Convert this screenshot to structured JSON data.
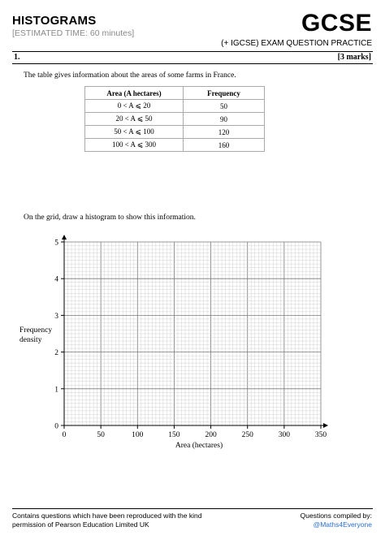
{
  "header": {
    "title": "HISTOGRAMS",
    "estimated_time": "[ESTIMATED TIME: 60 minutes]",
    "brand": "GCSE",
    "subtitle": "(+ IGCSE) EXAM QUESTION PRACTICE"
  },
  "question": {
    "number": "1.",
    "marks": "[3 marks]",
    "intro": "The table gives information about the areas of some farms in France.",
    "instruction": "On the grid, draw a histogram to show this information."
  },
  "table": {
    "headers": [
      "Area (A hectares)",
      "Frequency"
    ],
    "rows": [
      {
        "area": "0 < A ⩽ 20",
        "frequency": "50"
      },
      {
        "area": "20 < A ⩽ 50",
        "frequency": "90"
      },
      {
        "area": "50 < A ⩽ 100",
        "frequency": "120"
      },
      {
        "area": "100 < A ⩽ 300",
        "frequency": "160"
      }
    ]
  },
  "grid": {
    "ylabel_line1": "Frequency",
    "ylabel_line2": "density",
    "xlabel": "Area (hectares)",
    "x_ticks": [
      0,
      50,
      100,
      150,
      200,
      250,
      300,
      350
    ],
    "y_ticks": [
      0,
      1,
      2,
      3,
      4,
      5
    ],
    "xlim": [
      0,
      350
    ],
    "ylim": [
      0,
      5
    ]
  },
  "footer": {
    "left_line1": "Contains questions which have been reproduced with the kind",
    "left_line2": "permission of Pearson Education Limited UK",
    "right_line1": "Questions compiled by:",
    "right_line2": "@Maths4Everyone"
  },
  "colors": {
    "link": "#2a6fd6",
    "grid_minor": "#c8c8c8",
    "grid_major": "#7a7a7a"
  }
}
